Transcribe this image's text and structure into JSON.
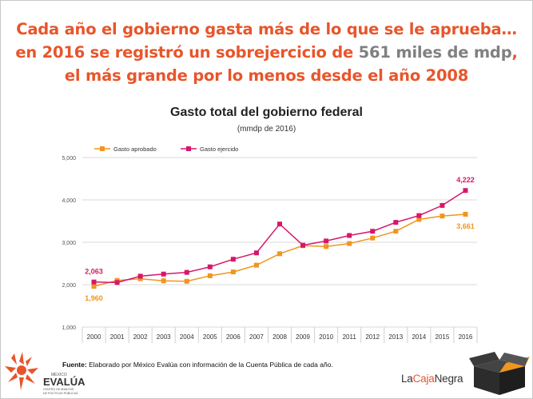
{
  "headline": {
    "line1": "Cada año el gobierno gasta más de lo que se le aprueba…",
    "line2_pre": "en 2016 se registró un sobrejercicio de ",
    "line2_highlight": "561 miles de mdp",
    "line2_post": ",",
    "line3": "el más grande por lo menos desde el año 2008"
  },
  "colors": {
    "headline": "#e8552a",
    "highlight": "#808080",
    "aprobado": "#f0961e",
    "ejercido": "#d6176b",
    "grid": "#d9d9d9"
  },
  "chart_data": {
    "type": "line",
    "title": "Gasto total del gobierno federal",
    "subtitle": "(mmdp de 2016)",
    "xlabel": "",
    "ylabel": "",
    "ylim": [
      1000,
      5000
    ],
    "yticks": [
      "1,000",
      "2,000",
      "3,000",
      "4,000",
      "5,000"
    ],
    "grid": true,
    "legend_position": "top-left",
    "categories": [
      "2000",
      "2001",
      "2002",
      "2003",
      "2004",
      "2005",
      "2006",
      "2007",
      "2008",
      "2009",
      "2010",
      "2011",
      "2012",
      "2013",
      "2014",
      "2015",
      "2016"
    ],
    "series": [
      {
        "name": "Gasto aprobado",
        "color": "#f0961e",
        "values": [
          1960,
          2100,
          2140,
          2090,
          2080,
          2210,
          2300,
          2460,
          2730,
          2920,
          2900,
          2970,
          3100,
          3260,
          3540,
          3620,
          3661
        ]
      },
      {
        "name": "Gasto ejercido",
        "color": "#d6176b",
        "values": [
          2063,
          2050,
          2200,
          2250,
          2290,
          2420,
          2600,
          2750,
          3430,
          2930,
          3030,
          3160,
          3260,
          3470,
          3630,
          3870,
          4222
        ]
      }
    ],
    "annotations": [
      {
        "series": "Gasto ejercido",
        "index": 0,
        "text": "2,063"
      },
      {
        "series": "Gasto aprobado",
        "index": 0,
        "text": "1,960"
      },
      {
        "series": "Gasto ejercido",
        "index": 16,
        "text": "4,222"
      },
      {
        "series": "Gasto aprobado",
        "index": 16,
        "text": "3,661"
      }
    ]
  },
  "source": {
    "label": "Fuente:",
    "text": " Elaborado por México Evalúa con información de la Cuenta Pública de cada año."
  },
  "logo_left": {
    "top": "MÉXICO",
    "main": "EVALÚA",
    "sub1": "CENTRO DE ANÁLISIS",
    "sub2": "DE POLÍTICAS PÚBLICAS"
  },
  "logo_right": {
    "part1": "La",
    "part2": "Caja",
    "part3": "Negra"
  }
}
